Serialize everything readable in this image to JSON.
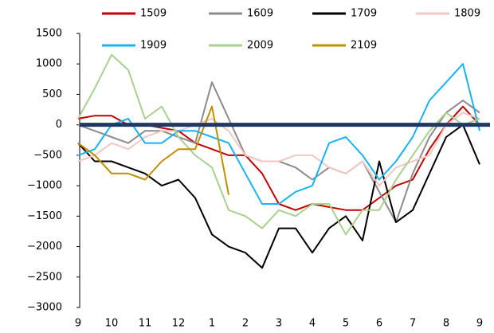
{
  "chart_data": {
    "type": "line",
    "x": [
      0,
      0.5,
      1,
      1.5,
      2,
      2.5,
      3,
      3.5,
      4,
      4.5,
      5,
      5.5,
      6,
      6.5,
      7,
      7.5,
      8,
      8.5,
      9,
      9.5,
      10,
      10.5,
      11,
      11.5,
      12
    ],
    "xlim": [
      0,
      12
    ],
    "xticks": [
      {
        "value": 0,
        "label": "9"
      },
      {
        "value": 1,
        "label": "10"
      },
      {
        "value": 2,
        "label": "11"
      },
      {
        "value": 3,
        "label": "12"
      },
      {
        "value": 4,
        "label": "1"
      },
      {
        "value": 5,
        "label": "2"
      },
      {
        "value": 6,
        "label": "3"
      },
      {
        "value": 7,
        "label": "4"
      },
      {
        "value": 8,
        "label": "5"
      },
      {
        "value": 9,
        "label": "6"
      },
      {
        "value": 10,
        "label": "7"
      },
      {
        "value": 11,
        "label": "8"
      },
      {
        "value": 12,
        "label": "9"
      }
    ],
    "ylim": [
      -3000,
      1500
    ],
    "yticks": [
      {
        "value": -3000,
        "label": "−3000"
      },
      {
        "value": -2500,
        "label": "−2500"
      },
      {
        "value": -2000,
        "label": "−2000"
      },
      {
        "value": -1500,
        "label": "−1500"
      },
      {
        "value": -1000,
        "label": "−1000"
      },
      {
        "value": -500,
        "label": "−500"
      },
      0,
      500,
      1000,
      1500
    ],
    "zero_line_color": "#1f3864",
    "series": [
      {
        "name": "1509",
        "color": "#c00000",
        "values": [
          100,
          150,
          150,
          0,
          0,
          -50,
          -100,
          -300,
          -400,
          -500,
          -500,
          -800,
          -1300,
          -1400,
          -1300,
          -1350,
          -1400,
          -1400,
          -1200,
          -1000,
          -900,
          -400,
          0,
          300,
          0
        ]
      },
      {
        "name": "1609",
        "color": "#8c8c8c",
        "values": [
          0,
          -100,
          -200,
          -300,
          -100,
          -100,
          -200,
          -300,
          700,
          100,
          -500,
          -600,
          -600,
          -700,
          -900,
          -700,
          -800,
          -600,
          -1100,
          -1600,
          -800,
          -200,
          200,
          400,
          200
        ]
      },
      {
        "name": "1709",
        "color": "#000000",
        "values": [
          -300,
          -600,
          -600,
          -700,
          -800,
          -1000,
          -900,
          -1200,
          -1800,
          -2000,
          -2100,
          -2350,
          -1700,
          -1700,
          -2100,
          -1700,
          -1500,
          -1900,
          -600,
          -1600,
          -1400,
          -800,
          -200,
          0,
          -650
        ]
      },
      {
        "name": "1809",
        "color": "#f4c7c3",
        "values": [
          -600,
          -500,
          -300,
          -400,
          -200,
          -100,
          -100,
          0,
          100,
          -100,
          -500,
          -600,
          -600,
          -500,
          -500,
          -700,
          -800,
          -600,
          -1000,
          -700,
          -600,
          -500,
          0,
          200,
          100
        ]
      },
      {
        "name": "1909",
        "color": "#19b3f0",
        "values": [
          -500,
          -400,
          0,
          100,
          -300,
          -300,
          -100,
          -100,
          -200,
          -300,
          -800,
          -1300,
          -1300,
          -1100,
          -1000,
          -300,
          -200,
          -500,
          -900,
          -600,
          -200,
          400,
          700,
          1000,
          -100
        ]
      },
      {
        "name": "2009",
        "color": "#a9d18e",
        "values": [
          100,
          600,
          1150,
          900,
          100,
          300,
          -200,
          -500,
          -700,
          -1400,
          -1500,
          -1700,
          -1400,
          -1500,
          -1300,
          -1300,
          -1800,
          -1400,
          -1400,
          -900,
          -500,
          -100,
          200,
          0,
          100
        ]
      },
      {
        "name": "2109",
        "color": "#bf9000",
        "values": [
          -300,
          -500,
          -800,
          -800,
          -900,
          -600,
          -400,
          -400,
          300,
          -1150,
          null,
          null,
          null,
          null,
          null,
          null,
          null,
          null,
          null,
          null,
          null,
          null,
          null,
          null,
          null
        ]
      }
    ]
  }
}
